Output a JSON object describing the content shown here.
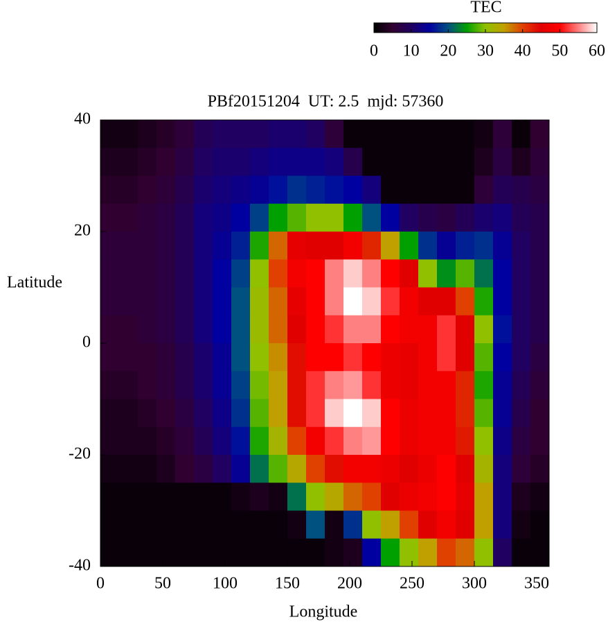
{
  "chart_data": {
    "type": "heatmap",
    "title": "PBf20151204  UT: 2.5  mjd: 57360",
    "xlabel": "Longitude",
    "ylabel": "Latitude",
    "colorbar_label": "TEC",
    "xlim": [
      0,
      360
    ],
    "xticks": [
      0,
      50,
      100,
      150,
      200,
      250,
      300,
      350
    ],
    "ylim": [
      -40,
      40
    ],
    "yticks": [
      -40,
      -20,
      0,
      20,
      40
    ],
    "clim": [
      0,
      60
    ],
    "cticks": [
      0,
      10,
      20,
      30,
      40,
      50,
      60
    ],
    "colorscale": [
      {
        "value": 0,
        "color": "#000000"
      },
      {
        "value": 5,
        "color": "#300030"
      },
      {
        "value": 10,
        "color": "#200060"
      },
      {
        "value": 15,
        "color": "#0000a0"
      },
      {
        "value": 20,
        "color": "#005080"
      },
      {
        "value": 25,
        "color": "#00a000"
      },
      {
        "value": 30,
        "color": "#90c000"
      },
      {
        "value": 35,
        "color": "#c0a000"
      },
      {
        "value": 40,
        "color": "#e04000"
      },
      {
        "value": 45,
        "color": "#e00000"
      },
      {
        "value": 50,
        "color": "#ff0000"
      },
      {
        "value": 55,
        "color": "#ff8080"
      },
      {
        "value": 60,
        "color": "#ffffff"
      }
    ],
    "x": [
      7.5,
      22.5,
      37.5,
      52.5,
      67.5,
      82.5,
      97.5,
      112.5,
      127.5,
      142.5,
      157.5,
      172.5,
      187.5,
      202.5,
      217.5,
      232.5,
      247.5,
      262.5,
      277.5,
      292.5,
      307.5,
      322.5,
      337.5,
      352.5
    ],
    "y": [
      37.5,
      32.5,
      27.5,
      22.5,
      17.5,
      12.5,
      7.5,
      2.5,
      -2.5,
      -7.5,
      -12.5,
      -17.5,
      -22.5,
      -27.5,
      -32.5,
      -37.5
    ],
    "z": [
      [
        2,
        2,
        3,
        4,
        6,
        9,
        10,
        10,
        10,
        11,
        11,
        10,
        6,
        1,
        1,
        1,
        1,
        1,
        1,
        1,
        2,
        6,
        1,
        5
      ],
      [
        3,
        3,
        4,
        5,
        7,
        10,
        11,
        11,
        12,
        13,
        13,
        13,
        12,
        8,
        1,
        1,
        1,
        1,
        1,
        1,
        3,
        7,
        3,
        6
      ],
      [
        4,
        4,
        5,
        6,
        8,
        11,
        12,
        13,
        14,
        16,
        18,
        17,
        16,
        15,
        12,
        1,
        1,
        1,
        1,
        1,
        6,
        9,
        8,
        7
      ],
      [
        5,
        5,
        6,
        7,
        9,
        12,
        13,
        15,
        19,
        25,
        28,
        30,
        30,
        25,
        20,
        15,
        10,
        8,
        7,
        9,
        11,
        12,
        9,
        8
      ],
      [
        6,
        6,
        6,
        7,
        9,
        12,
        14,
        17,
        26,
        38,
        46,
        45,
        45,
        48,
        42,
        35,
        25,
        18,
        14,
        17,
        18,
        14,
        10,
        8
      ],
      [
        6,
        6,
        6,
        7,
        9,
        12,
        15,
        19,
        30,
        40,
        48,
        50,
        55,
        58,
        55,
        50,
        45,
        30,
        24,
        28,
        22,
        15,
        10,
        8
      ],
      [
        6,
        6,
        6,
        7,
        9,
        12,
        15,
        20,
        31,
        38,
        46,
        50,
        55,
        60,
        58,
        52,
        48,
        45,
        45,
        40,
        26,
        15,
        10,
        8
      ],
      [
        5,
        5,
        6,
        7,
        9,
        12,
        15,
        20,
        31,
        38,
        45,
        50,
        52,
        55,
        55,
        50,
        48,
        48,
        52,
        45,
        30,
        16,
        10,
        8
      ],
      [
        5,
        5,
        5,
        6,
        8,
        11,
        14,
        20,
        30,
        36,
        44,
        50,
        50,
        52,
        50,
        47,
        46,
        48,
        52,
        45,
        28,
        15,
        10,
        7
      ],
      [
        4,
        4,
        5,
        6,
        8,
        11,
        14,
        19,
        29,
        35,
        44,
        52,
        55,
        56,
        52,
        47,
        46,
        48,
        48,
        42,
        26,
        14,
        9,
        6
      ],
      [
        3,
        3,
        4,
        5,
        7,
        10,
        13,
        18,
        28,
        35,
        44,
        52,
        58,
        60,
        58,
        50,
        47,
        48,
        48,
        42,
        28,
        14,
        8,
        5
      ],
      [
        3,
        3,
        3,
        4,
        6,
        9,
        12,
        16,
        26,
        32,
        40,
        48,
        52,
        55,
        56,
        50,
        47,
        48,
        48,
        43,
        30,
        13,
        7,
        5
      ],
      [
        2,
        2,
        2,
        3,
        5,
        7,
        10,
        14,
        22,
        28,
        34,
        40,
        44,
        48,
        48,
        47,
        45,
        47,
        50,
        45,
        32,
        12,
        6,
        4
      ],
      [
        1,
        1,
        1,
        1,
        1,
        1,
        1,
        2,
        3,
        2,
        22,
        30,
        34,
        38,
        40,
        45,
        47,
        48,
        50,
        46,
        35,
        12,
        3,
        2
      ],
      [
        1,
        1,
        1,
        1,
        1,
        1,
        1,
        1,
        1,
        1,
        2,
        20,
        2,
        18,
        30,
        35,
        40,
        45,
        48,
        45,
        35,
        12,
        2,
        1
      ],
      [
        1,
        1,
        1,
        1,
        1,
        1,
        1,
        1,
        1,
        1,
        1,
        1,
        2,
        3,
        15,
        25,
        30,
        35,
        40,
        38,
        30,
        10,
        1,
        1
      ]
    ]
  }
}
